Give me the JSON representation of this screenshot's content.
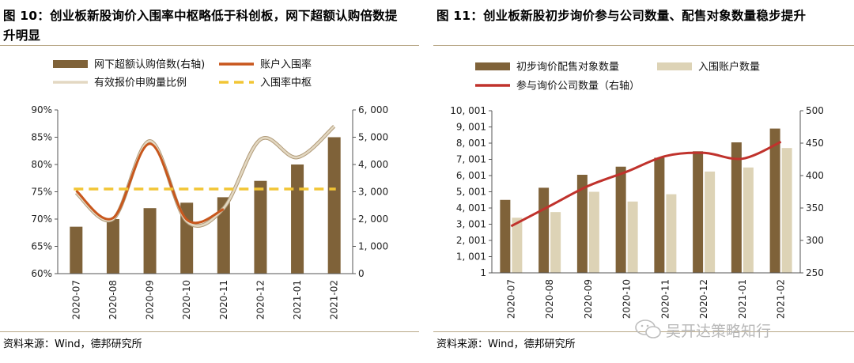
{
  "left": {
    "title": "图 10：创业板新股询价入围率中枢略低于科创板，网下超额认购倍数提升明显",
    "source": "资料来源：Wind，德邦研究所"
  },
  "right": {
    "title": "图 11：创业板新股初步询价参与公司数量、配售对象数量稳步提升",
    "source": "资料来源：Wind，德邦研究所"
  },
  "watermark": "吴开达策略知行",
  "colors": {
    "brown": "#7f6239",
    "beige": "#ddd3b6",
    "orange": "#c8571d",
    "cream": "#e3d8c2",
    "gold": "#f2c535",
    "red": "#c0322c",
    "axis": "#555555",
    "rule": "#b9a888"
  },
  "chart_data": [
    {
      "type": "bar+line",
      "title": "创业板新股询价入围率中枢略低于科创板，网下超额认购倍数提升明显",
      "categories": [
        "2020-07",
        "2020-08",
        "2020-09",
        "2020-10",
        "2020-11",
        "2020-12",
        "2021-01",
        "2021-02"
      ],
      "series": [
        {
          "name": "网下超额认购倍数(右轴)",
          "kind": "bar",
          "axis": "right",
          "color": "#7f6239",
          "values": [
            1720,
            2000,
            2400,
            2600,
            2800,
            3400,
            4000,
            5000
          ]
        },
        {
          "name": "账户入围率",
          "kind": "line",
          "axis": "left",
          "color": "#c8571d",
          "values": [
            75.2,
            70.2,
            83.8,
            69.9,
            71.8,
            84.3,
            81.2,
            86.3
          ]
        },
        {
          "name": "有效报价申购量比例",
          "kind": "line",
          "axis": "left",
          "color": "#e3d8c2",
          "values": [
            74.8,
            70.0,
            84.3,
            69.6,
            72.0,
            84.6,
            81.3,
            87.0
          ]
        },
        {
          "name": "入围率中枢",
          "kind": "dashed",
          "axis": "left",
          "color": "#f2c535",
          "values": [
            75.5,
            75.5,
            75.5,
            75.5,
            75.5,
            75.5,
            75.5,
            75.5
          ]
        }
      ],
      "yleft": {
        "min": 60,
        "max": 90,
        "ticks": [
          "60%",
          "65%",
          "70%",
          "75%",
          "80%",
          "85%",
          "90%"
        ]
      },
      "yright": {
        "min": 0,
        "max": 6000,
        "ticks": [
          "0",
          "1, 000",
          "2, 000",
          "3, 000",
          "4, 000",
          "5, 000",
          "6, 000"
        ]
      }
    },
    {
      "type": "bar+line",
      "title": "创业板新股初步询价参与公司数量、配售对象数量稳步提升",
      "categories": [
        "2020-07",
        "2020-08",
        "2020-09",
        "2020-10",
        "2020-11",
        "2020-12",
        "2021-01",
        "2021-02"
      ],
      "series": [
        {
          "name": "初步询价配售对象数量",
          "kind": "bar",
          "axis": "left",
          "color": "#7f6239",
          "values": [
            4500,
            5250,
            6050,
            6550,
            7100,
            7500,
            8050,
            8900
          ]
        },
        {
          "name": "入围账户数量",
          "kind": "bar",
          "axis": "left",
          "color": "#ddd3b6",
          "values": [
            3400,
            3750,
            5000,
            4400,
            4850,
            6250,
            6500,
            7700
          ]
        },
        {
          "name": "参与询价公司数量（右轴）",
          "kind": "line",
          "axis": "right",
          "color": "#c0322c",
          "values": [
            322,
            353,
            384,
            406,
            430,
            435,
            426,
            452
          ]
        }
      ],
      "yleft": {
        "min": 1,
        "max": 10001,
        "ticks": [
          "1",
          "1, 001",
          "2, 001",
          "3, 001",
          "4, 001",
          "5, 001",
          "6, 001",
          "7, 001",
          "8, 001",
          "9, 001",
          "10, 001"
        ]
      },
      "yright": {
        "min": 250,
        "max": 500,
        "ticks": [
          "250",
          "300",
          "350",
          "400",
          "450",
          "500"
        ]
      }
    }
  ]
}
